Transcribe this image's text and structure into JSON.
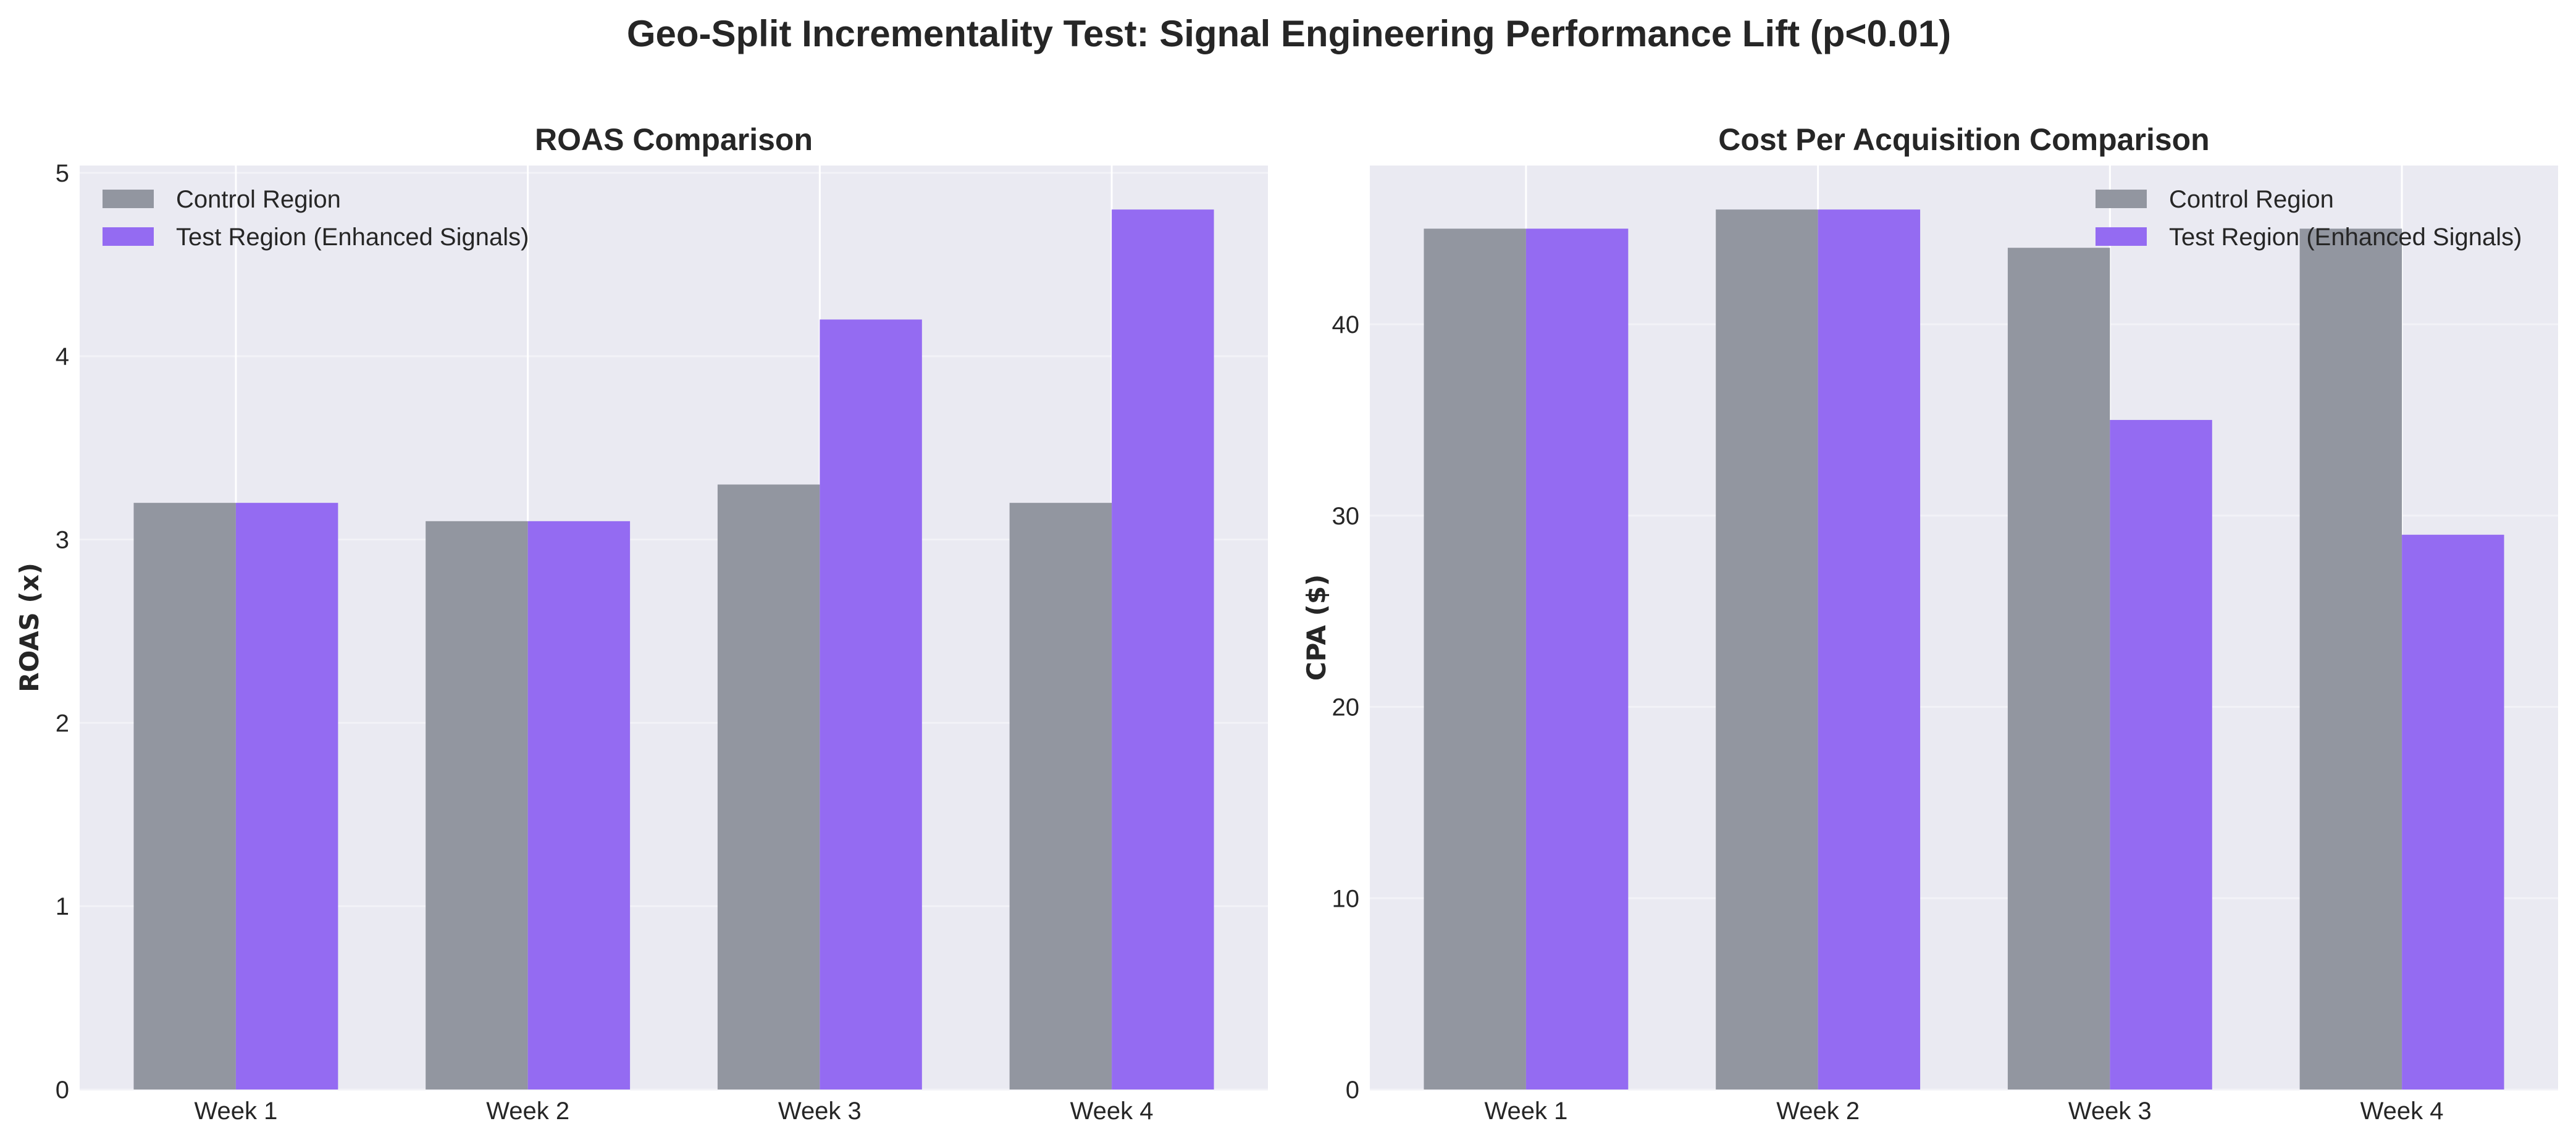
{
  "chart_data": {
    "type": "bar",
    "title": "Geo-Split Incrementality Test: Signal Engineering Performance Lift (p<0.01)",
    "colors": {
      "control": "#9296a0",
      "test": "#946bf2",
      "plot_bg": "#eaeaf2",
      "grid": "#ffffff",
      "text": "#262626"
    },
    "panels": [
      {
        "id": "roas",
        "title": "ROAS Comparison",
        "xlabel": "",
        "ylabel": "ROAS (x)",
        "categories": [
          "Week 1",
          "Week 2",
          "Week 3",
          "Week 4"
        ],
        "ylim": [
          0,
          5.04
        ],
        "yticks": [
          0,
          1,
          2,
          3,
          4,
          5
        ],
        "grid": true,
        "legend_position": "top-left",
        "series": [
          {
            "name": "Control Region",
            "color_key": "control",
            "values": [
              3.2,
              3.1,
              3.3,
              3.2
            ]
          },
          {
            "name": "Test Region (Enhanced Signals)",
            "color_key": "test",
            "values": [
              3.2,
              3.1,
              4.2,
              4.8
            ]
          }
        ]
      },
      {
        "id": "cpa",
        "title": "Cost Per Acquisition Comparison",
        "xlabel": "",
        "ylabel": "CPA ($)",
        "categories": [
          "Week 1",
          "Week 2",
          "Week 3",
          "Week 4"
        ],
        "ylim": [
          0,
          48.3
        ],
        "yticks": [
          0,
          10,
          20,
          30,
          40
        ],
        "grid": true,
        "legend_position": "top-right",
        "series": [
          {
            "name": "Control Region",
            "color_key": "control",
            "values": [
              45,
              46,
              44,
              45
            ]
          },
          {
            "name": "Test Region (Enhanced Signals)",
            "color_key": "test",
            "values": [
              45,
              46,
              35,
              29
            ]
          }
        ]
      }
    ]
  }
}
